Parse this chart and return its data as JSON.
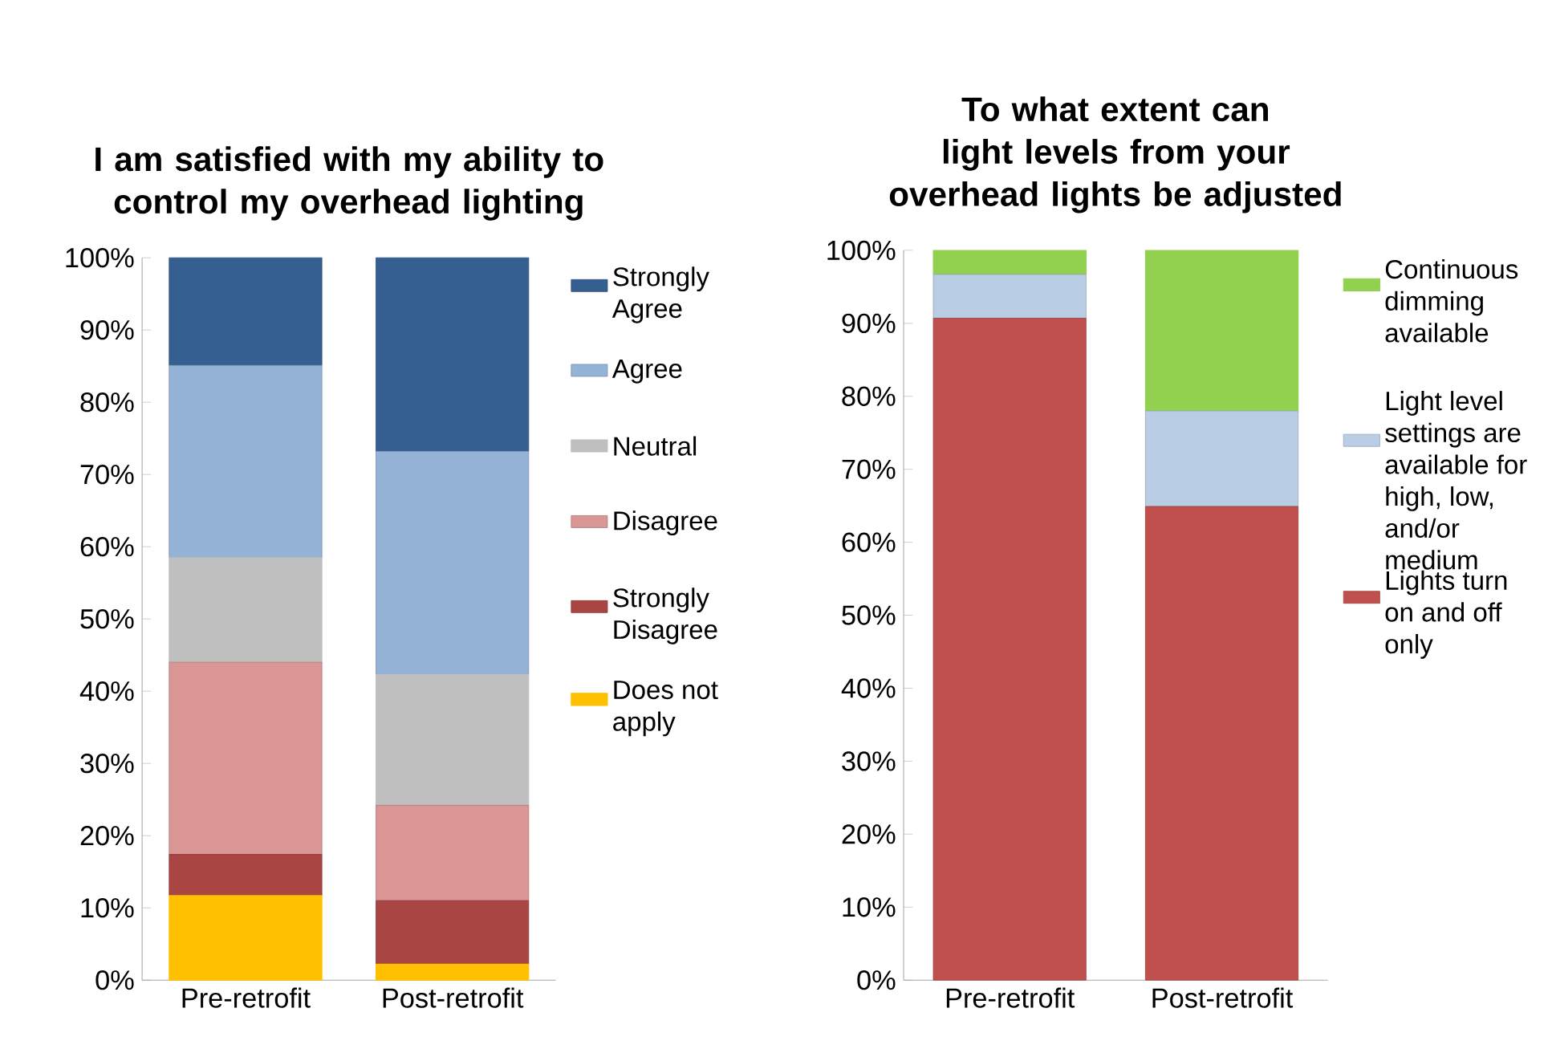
{
  "chart_data": [
    {
      "type": "bar",
      "stacked": true,
      "title": "I am satisfied with my ability to control my overhead lighting",
      "categories": [
        "Pre-retrofit",
        "Post-retrofit"
      ],
      "legend": "right",
      "ylim": [
        0,
        100
      ],
      "yticks": [
        {
          "value": 0,
          "label": "0%"
        },
        {
          "value": 10,
          "label": "10%"
        },
        {
          "value": 20,
          "label": "20%"
        },
        {
          "value": 30,
          "label": "30%"
        },
        {
          "value": 40,
          "label": "40%"
        },
        {
          "value": 50,
          "label": "50%"
        },
        {
          "value": 60,
          "label": "60%"
        },
        {
          "value": 70,
          "label": "70%"
        },
        {
          "value": 80,
          "label": "80%"
        },
        {
          "value": 90,
          "label": "90%"
        },
        {
          "value": 100,
          "label": "100%"
        }
      ],
      "series": [
        {
          "name": "Does not apply",
          "color": "#ffc000",
          "values": [
            11.7,
            2.2
          ]
        },
        {
          "name": "Strongly Disagree",
          "color": "#a94543",
          "values": [
            5.7,
            8.8
          ]
        },
        {
          "name": "Disagree",
          "color": "#d99694",
          "values": [
            26.6,
            13.2
          ]
        },
        {
          "name": "Neutral",
          "color": "#bfbfbf",
          "values": [
            14.5,
            18.1
          ]
        },
        {
          "name": "Agree",
          "color": "#95b3d7",
          "values": [
            26.6,
            30.9
          ]
        },
        {
          "name": "Strongly Agree",
          "color": "#355f91",
          "values": [
            14.9,
            26.8
          ]
        }
      ]
    },
    {
      "type": "bar",
      "stacked": true,
      "title": "To what extent can light levels from your overhead lights be adjusted",
      "categories": [
        "Pre-retrofit",
        "Post-retrofit"
      ],
      "legend": "right",
      "ylim": [
        0,
        100
      ],
      "yticks": [
        {
          "value": 0,
          "label": "0%"
        },
        {
          "value": 10,
          "label": "10%"
        },
        {
          "value": 20,
          "label": "20%"
        },
        {
          "value": 30,
          "label": "30%"
        },
        {
          "value": 40,
          "label": "40%"
        },
        {
          "value": 50,
          "label": "50%"
        },
        {
          "value": 60,
          "label": "60%"
        },
        {
          "value": 70,
          "label": "70%"
        },
        {
          "value": 80,
          "label": "80%"
        },
        {
          "value": 90,
          "label": "90%"
        },
        {
          "value": 100,
          "label": "100%"
        }
      ],
      "series": [
        {
          "name": "Lights turn on and off only",
          "color": "#c0504d",
          "values": [
            90.7,
            64.9
          ]
        },
        {
          "name": "Light level settings are available for high, low, and/or medium",
          "color": "#b9cde5",
          "values": [
            6.0,
            13.1
          ]
        },
        {
          "name": "Continuous dimming available",
          "color": "#92d050",
          "values": [
            3.3,
            22.0
          ]
        }
      ]
    }
  ]
}
